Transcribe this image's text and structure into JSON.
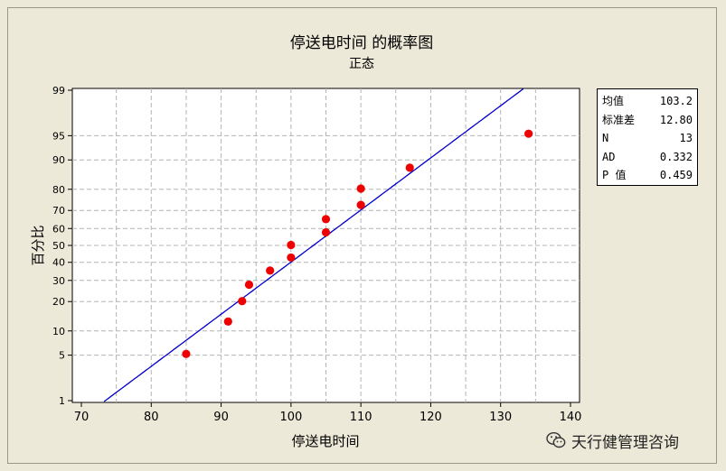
{
  "chart_data": {
    "type": "scatter",
    "title": "停送电时间 的概率图",
    "subtitle": "正态",
    "xlabel": "停送电时间",
    "ylabel": "百分比",
    "xlim": [
      70,
      140
    ],
    "x_ticks": [
      70,
      80,
      90,
      100,
      110,
      120,
      130,
      140
    ],
    "y_ticks": [
      1,
      5,
      10,
      20,
      30,
      40,
      50,
      60,
      70,
      80,
      90,
      95,
      99
    ],
    "y_scale": "normal-probability",
    "grid": true,
    "points": [
      {
        "x": 85,
        "y": 5.2
      },
      {
        "x": 91,
        "y": 12.7
      },
      {
        "x": 93,
        "y": 20.2
      },
      {
        "x": 94,
        "y": 27.8
      },
      {
        "x": 97,
        "y": 35.3
      },
      {
        "x": 100,
        "y": 42.8
      },
      {
        "x": 100,
        "y": 50.3
      },
      {
        "x": 105,
        "y": 57.8
      },
      {
        "x": 105,
        "y": 65.3
      },
      {
        "x": 110,
        "y": 72.8
      },
      {
        "x": 110,
        "y": 80.3
      },
      {
        "x": 117,
        "y": 87.8
      },
      {
        "x": 134,
        "y": 95.3
      }
    ],
    "fit_line": {
      "mean": 103.2,
      "stdev": 12.8
    },
    "colors": {
      "points": "#ee0000",
      "fit_line": "#0000cc",
      "grid": "#b4b4b4",
      "plot_bg": "#ffffff",
      "page_bg": "#ece9d8"
    }
  },
  "stats": [
    {
      "label": "均值",
      "value": "103.2"
    },
    {
      "label": "标准差",
      "value": "12.80"
    },
    {
      "label": "N",
      "value": "13"
    },
    {
      "label": "AD",
      "value": "0.332"
    },
    {
      "label": "P 值",
      "value": "0.459"
    }
  ],
  "watermark": {
    "text": "天行健管理咨询",
    "icon": "wechat-icon"
  }
}
